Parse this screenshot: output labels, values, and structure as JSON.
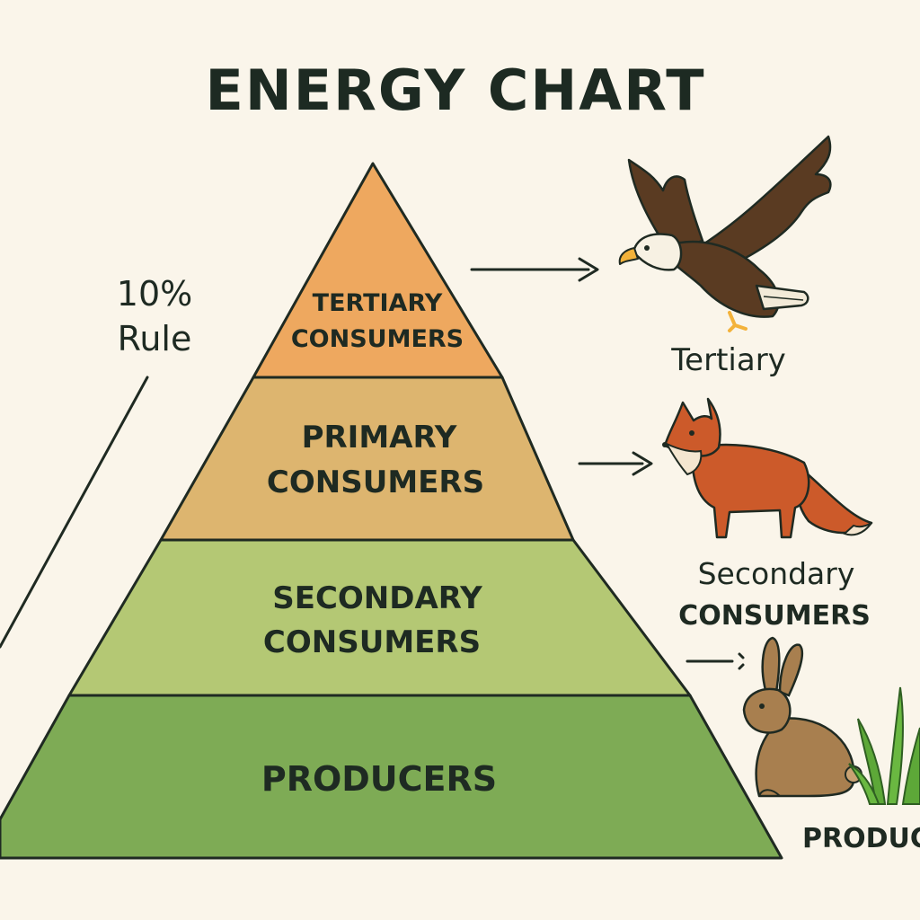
{
  "title": "ENERGY CHART",
  "rule": {
    "line1": "10%",
    "line2": "Rule"
  },
  "tiers": [
    {
      "line1": "TERTIARY",
      "line2": "CONSUMERS",
      "color": "#eea85f"
    },
    {
      "line1": "PRIMARY",
      "line2": "CONSUMERS",
      "color": "#ddb56f"
    },
    {
      "line1": "SECONDARY",
      "line2": "CONSUMERS",
      "color": "#b4c874"
    },
    {
      "line1": "PRODUCERS",
      "line2": "",
      "color": "#7eab55"
    }
  ],
  "animals": {
    "eagle": {
      "icon": "eagle-icon",
      "label": "Tertiary"
    },
    "fox": {
      "icon": "fox-icon",
      "label1": "Secondary",
      "label2": "CONSUMERS"
    },
    "rabbit": {
      "icon": "rabbit-icon"
    },
    "grass": {
      "icon": "grass-icon",
      "label": "PRODUC"
    }
  },
  "colors": {
    "background": "#faf5ea",
    "ink": "#1f2a22",
    "eagle_body": "#5a3b22",
    "fox_body": "#cc5a2a",
    "rabbit_body": "#a87f4f",
    "grass": "#5da838"
  }
}
